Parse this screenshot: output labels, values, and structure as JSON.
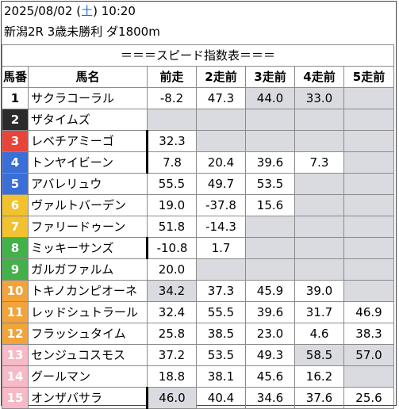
{
  "header": {
    "date": "2025/08/02",
    "dow": "土",
    "time": "10:20",
    "race": "新潟2R 3歳未勝利 ダ1800m"
  },
  "banner": "＝＝＝スピード指数表＝＝＝",
  "columns": [
    "馬番",
    "馬名",
    "前走",
    "2走前",
    "3走前",
    "4走前",
    "5走前"
  ],
  "colors": {
    "1": "#ffffff",
    "2": "#2b2b2b",
    "3": "#e8443a",
    "4": "#3b6fd8",
    "5": "#f2c22e",
    "6": "#43b04a",
    "7": "#f2a33a",
    "8": "#f7b9c5"
  },
  "horses": [
    {
      "num": "1",
      "name": "サクラコーラル",
      "frame": 1,
      "vals": [
        "-8.2",
        "47.3",
        "44.0",
        "33.0",
        ""
      ],
      "gray": [
        false,
        false,
        true,
        true,
        true
      ]
    },
    {
      "num": "2",
      "name": "ザタイムズ",
      "frame": 2,
      "vals": [
        "",
        "",
        "",
        "",
        ""
      ],
      "gray": [
        true,
        true,
        true,
        true,
        true
      ]
    },
    {
      "num": "3",
      "name": "レベチアミーゴ",
      "frame": 3,
      "sep": true,
      "vals": [
        "32.3",
        "",
        "",
        "",
        ""
      ],
      "gray": [
        false,
        true,
        true,
        true,
        true
      ]
    },
    {
      "num": "4",
      "name": "トンヤイビーン",
      "frame": 4,
      "sep": true,
      "vals": [
        "7.8",
        "20.4",
        "39.6",
        "7.3",
        ""
      ],
      "gray": [
        false,
        false,
        false,
        false,
        true
      ]
    },
    {
      "num": "5",
      "name": "アバレリュウ",
      "frame": 4,
      "vals": [
        "55.5",
        "49.7",
        "53.5",
        "",
        ""
      ],
      "gray": [
        false,
        false,
        false,
        true,
        true
      ]
    },
    {
      "num": "6",
      "name": "ヴァルトバーデン",
      "frame": 5,
      "vals": [
        "19.0",
        "-37.8",
        "15.6",
        "",
        ""
      ],
      "gray": [
        false,
        false,
        false,
        true,
        true
      ]
    },
    {
      "num": "7",
      "name": "ファリードゥーン",
      "frame": 5,
      "vals": [
        "51.8",
        "-14.3",
        "",
        "",
        ""
      ],
      "gray": [
        false,
        false,
        true,
        true,
        true
      ]
    },
    {
      "num": "8",
      "name": "ミッキーサンズ",
      "frame": 6,
      "sep": true,
      "vals": [
        "-10.8",
        "1.7",
        "",
        "",
        ""
      ],
      "gray": [
        false,
        false,
        true,
        true,
        true
      ]
    },
    {
      "num": "9",
      "name": "ガルガファルム",
      "frame": 6,
      "vals": [
        "20.0",
        "",
        "",
        "",
        ""
      ],
      "gray": [
        false,
        true,
        true,
        true,
        true
      ]
    },
    {
      "num": "10",
      "name": "トキノカンピオーネ",
      "frame": 7,
      "vals": [
        "34.2",
        "37.3",
        "45.9",
        "39.0",
        ""
      ],
      "gray": [
        true,
        false,
        false,
        false,
        true
      ]
    },
    {
      "num": "11",
      "name": "レッドシュトラール",
      "frame": 7,
      "vals": [
        "32.4",
        "55.5",
        "39.6",
        "31.7",
        "46.9"
      ],
      "gray": [
        false,
        false,
        false,
        false,
        false
      ]
    },
    {
      "num": "12",
      "name": "フラッシュタイム",
      "frame": 7,
      "vals": [
        "25.8",
        "38.5",
        "23.0",
        "4.6",
        "38.3"
      ],
      "gray": [
        false,
        false,
        false,
        false,
        false
      ]
    },
    {
      "num": "13",
      "name": "センジュコスモス",
      "frame": 8,
      "vals": [
        "37.2",
        "53.5",
        "49.3",
        "58.5",
        "57.0"
      ],
      "gray": [
        false,
        false,
        false,
        true,
        true
      ]
    },
    {
      "num": "14",
      "name": "グールマン",
      "frame": 8,
      "vals": [
        "18.8",
        "38.1",
        "45.6",
        "16.2",
        ""
      ],
      "gray": [
        false,
        false,
        false,
        false,
        true
      ]
    },
    {
      "num": "15",
      "name": "オンザバサラ",
      "frame": 8,
      "sep": true,
      "vals": [
        "46.0",
        "40.4",
        "34.6",
        "37.6",
        "25.6"
      ],
      "gray": [
        true,
        false,
        false,
        false,
        false
      ]
    }
  ]
}
